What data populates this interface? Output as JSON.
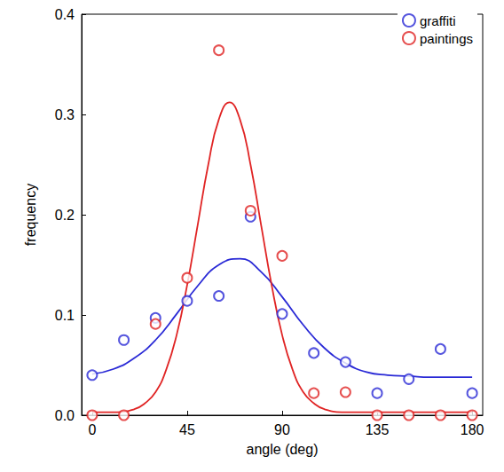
{
  "chart_data": {
    "type": "scatter",
    "xlabel": "angle (deg)",
    "ylabel": "frequency",
    "xlim": [
      -5,
      185
    ],
    "xticks": [
      0,
      45,
      90,
      135,
      180
    ],
    "ylim": [
      0,
      0.4
    ],
    "yticks": [
      {
        "value": 0,
        "label": "0.0"
      },
      0.1,
      0.2,
      0.3,
      0.4
    ],
    "legend": "upper right",
    "grid": false,
    "series": [
      {
        "name": "graffiti",
        "color": "#2a2ad6",
        "marker": "open_circle",
        "x": [
          0,
          15,
          30,
          45,
          60,
          75,
          90,
          105,
          120,
          135,
          150,
          165,
          180
        ],
        "values": [
          0.04,
          0.075,
          0.097,
          0.114,
          0.119,
          0.198,
          0.101,
          0.062,
          0.053,
          0.022,
          0.036,
          0.066,
          0.022
        ],
        "fit": {
          "x": [
            0,
            10,
            20,
            30,
            40,
            50,
            60,
            70,
            80,
            90,
            100,
            110,
            120,
            130,
            140,
            150,
            160,
            170,
            180
          ],
          "values": [
            0.041,
            0.046,
            0.057,
            0.075,
            0.101,
            0.129,
            0.15,
            0.156,
            0.143,
            0.118,
            0.09,
            0.067,
            0.052,
            0.043,
            0.04,
            0.039,
            0.038,
            0.038,
            0.038
          ]
        }
      },
      {
        "name": "paintings",
        "color": "#e02424",
        "marker": "open_circle",
        "x": [
          0,
          15,
          30,
          45,
          60,
          75,
          90,
          105,
          120,
          135,
          150,
          165,
          180
        ],
        "values": [
          0.0,
          0.0,
          0.091,
          0.137,
          0.364,
          0.204,
          0.159,
          0.022,
          0.023,
          0.0,
          0.0,
          0.0,
          0.0
        ],
        "fit": {
          "x": [
            0,
            10,
            20,
            25,
            30,
            35,
            40,
            45,
            50,
            55,
            60,
            65,
            70,
            75,
            80,
            85,
            90,
            95,
            100,
            105,
            110,
            120,
            130,
            140,
            150,
            160,
            170,
            180
          ],
          "values": [
            0.003,
            0.003,
            0.006,
            0.012,
            0.023,
            0.045,
            0.08,
            0.13,
            0.19,
            0.25,
            0.295,
            0.312,
            0.295,
            0.25,
            0.19,
            0.13,
            0.08,
            0.045,
            0.023,
            0.012,
            0.006,
            0.003,
            0.003,
            0.003,
            0.003,
            0.003,
            0.003,
            0.003
          ]
        }
      }
    ]
  }
}
